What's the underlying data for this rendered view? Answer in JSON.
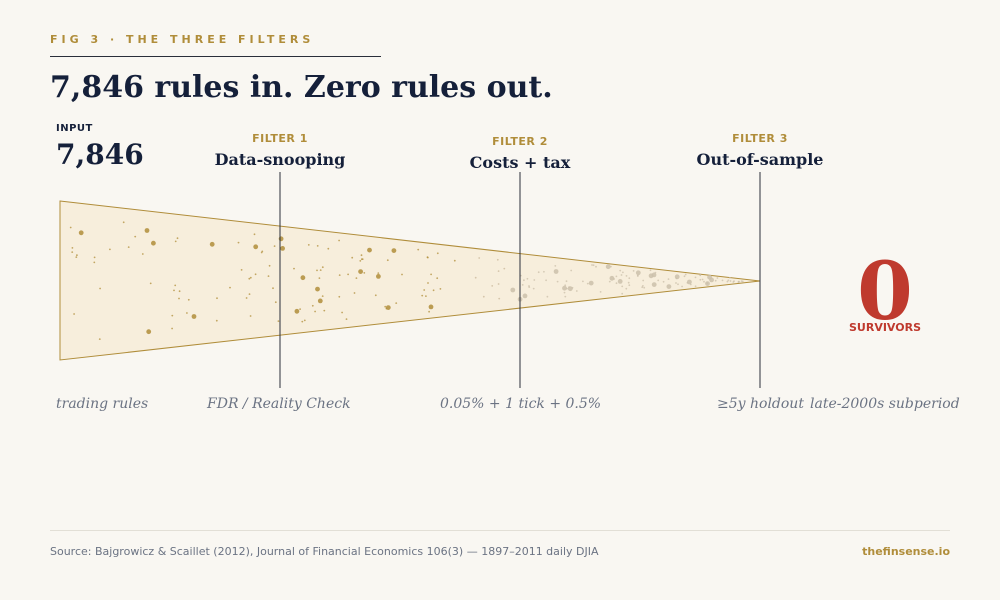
{
  "figure": {
    "eyebrow": "FIG 3 · THE THREE FILTERS",
    "headline": "7,846 rules in. Zero rules out."
  },
  "input": {
    "label": "INPUT",
    "value": "7,846",
    "caption": "trading rules"
  },
  "filters": [
    {
      "tag": "FILTER 1",
      "name": "Data-snooping",
      "caption": "FDR / Reality Check"
    },
    {
      "tag": "FILTER 2",
      "name": "Costs + tax",
      "caption": "0.05% + 1 tick + 0.5%"
    },
    {
      "tag": "FILTER 3",
      "name": "Out-of-sample",
      "caption": "≥5y holdout",
      "caption_extra": "late-2000s subperiod"
    }
  ],
  "output": {
    "value": "0",
    "label": "SURVIVORS"
  },
  "colors": {
    "accent": "#b08d3a",
    "ink": "#15203a",
    "alert": "#bf3a2e",
    "funnel_fill": "#f7eedc"
  },
  "footer": {
    "source": "Source: Bajgrowicz & Scaillet (2012), Journal of Financial Economics 106(3) — 1897–2011 daily DJIA",
    "site": "thefinsense.io"
  }
}
